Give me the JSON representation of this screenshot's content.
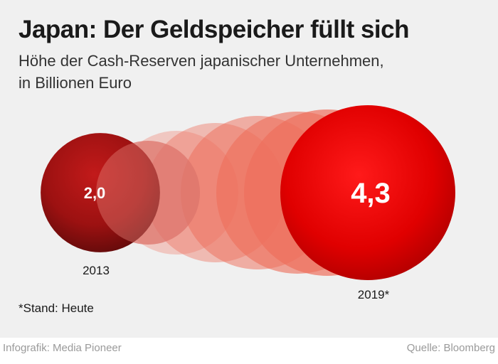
{
  "header": {
    "title": "Japan: Der Geldspeicher füllt sich",
    "subtitle_line1": "Höhe der Cash-Reserven japanischer Unternehmen,",
    "subtitle_line2": "in Billionen Euro"
  },
  "chart_data": {
    "type": "bubble",
    "title": "Japan: Der Geldspeicher füllt sich",
    "subtitle": "Höhe der Cash-Reserven japanischer Unternehmen, in Billionen Euro",
    "categories": [
      "2013",
      "2019*"
    ],
    "values": [
      2.0,
      4.3
    ],
    "labels": [
      "2,0",
      "4,3"
    ],
    "colors": {
      "start": "#8e1010",
      "end": "#e60000",
      "intermediate": "#ee6f5c"
    }
  },
  "note": "*Stand: Heute",
  "footer": {
    "credit": "Infografik: Media Pioneer",
    "source": "Quelle: Bloomberg"
  }
}
